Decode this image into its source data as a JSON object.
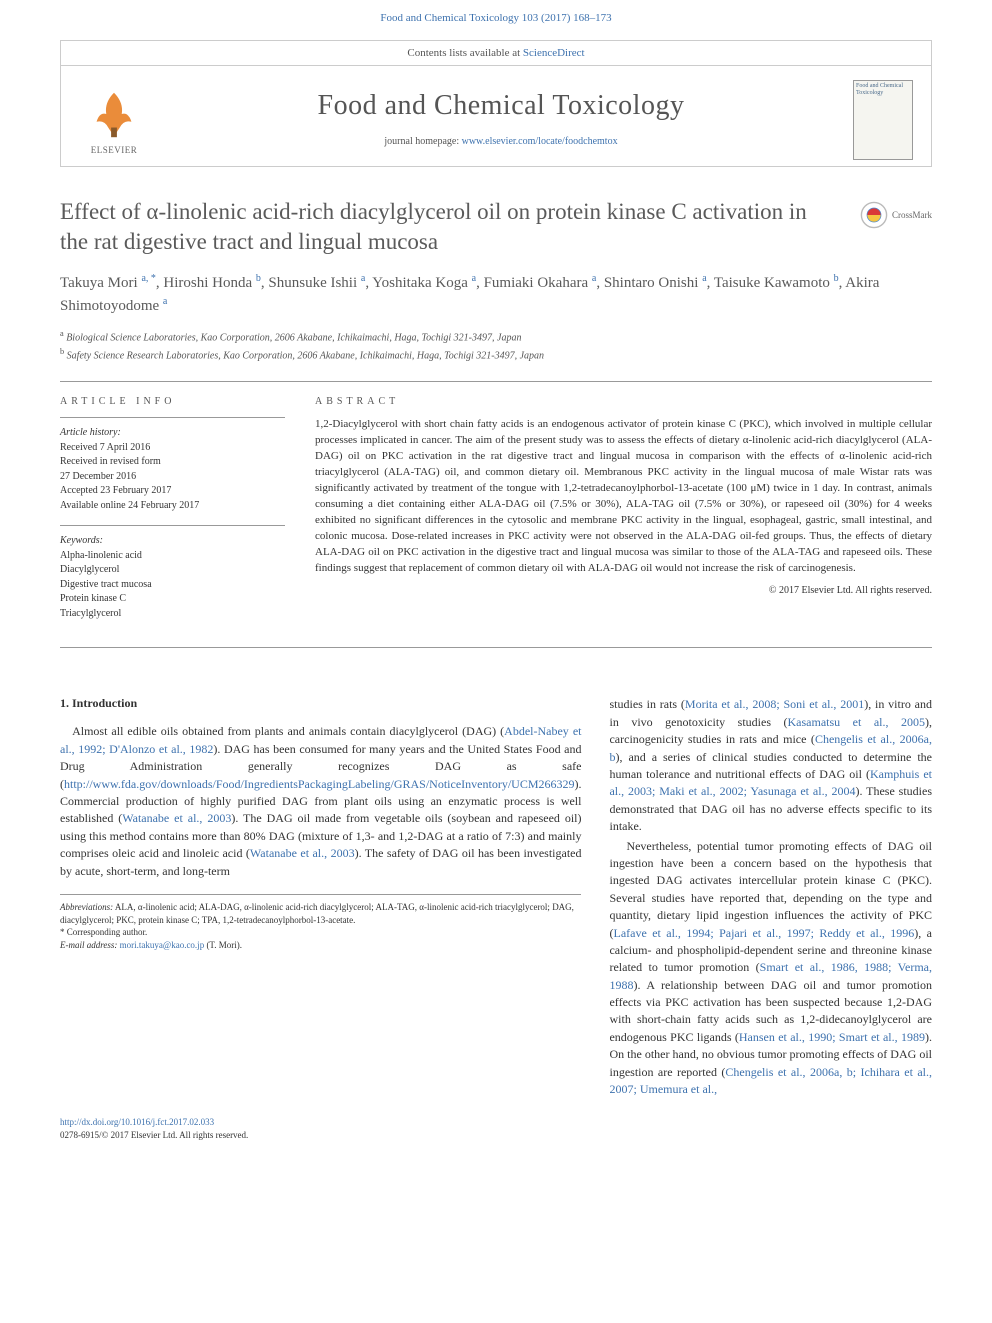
{
  "header": {
    "citation": "Food and Chemical Toxicology 103 (2017) 168–173",
    "contents_line_prefix": "Contents lists available at ",
    "contents_line_link": "ScienceDirect",
    "journal_title": "Food and Chemical Toxicology",
    "homepage_prefix": "journal homepage: ",
    "homepage_url": "www.elsevier.com/locate/foodchemtox",
    "cover_text": "Food and Chemical Toxicology"
  },
  "crossmark_label": "CrossMark",
  "article": {
    "title": "Effect of α-linolenic acid-rich diacylglycerol oil on protein kinase C activation in the rat digestive tract and lingual mucosa",
    "authors_html": "Takuya Mori <sup>a, *</sup>, Hiroshi Honda <sup>b</sup>, Shunsuke Ishii <sup>a</sup>, Yoshitaka Koga <sup>a</sup>, Fumiaki Okahara <sup>a</sup>, Shintaro Onishi <sup>a</sup>, Taisuke Kawamoto <sup>b</sup>, Akira Shimotoyodome <sup>a</sup>",
    "affiliations": [
      {
        "sup": "a",
        "text": "Biological Science Laboratories, Kao Corporation, 2606 Akabane, Ichikaimachi, Haga, Tochigi 321-3497, Japan"
      },
      {
        "sup": "b",
        "text": "Safety Science Research Laboratories, Kao Corporation, 2606 Akabane, Ichikaimachi, Haga, Tochigi 321-3497, Japan"
      }
    ]
  },
  "info": {
    "heading": "ARTICLE INFO",
    "history_label": "Article history:",
    "history": [
      "Received 7 April 2016",
      "Received in revised form",
      "27 December 2016",
      "Accepted 23 February 2017",
      "Available online 24 February 2017"
    ],
    "keywords_label": "Keywords:",
    "keywords": [
      "Alpha-linolenic acid",
      "Diacylglycerol",
      "Digestive tract mucosa",
      "Protein kinase C",
      "Triacylglycerol"
    ]
  },
  "abstract": {
    "heading": "ABSTRACT",
    "text": "1,2-Diacylglycerol with short chain fatty acids is an endogenous activator of protein kinase C (PKC), which involved in multiple cellular processes implicated in cancer. The aim of the present study was to assess the effects of dietary α-linolenic acid-rich diacylglycerol (ALA-DAG) oil on PKC activation in the rat digestive tract and lingual mucosa in comparison with the effects of α-linolenic acid-rich triacylglycerol (ALA-TAG) oil, and common dietary oil. Membranous PKC activity in the lingual mucosa of male Wistar rats was significantly activated by treatment of the tongue with 1,2-tetradecanoylphorbol-13-acetate (100 μM) twice in 1 day. In contrast, animals consuming a diet containing either ALA-DAG oil (7.5% or 30%), ALA-TAG oil (7.5% or 30%), or rapeseed oil (30%) for 4 weeks exhibited no significant differences in the cytosolic and membrane PKC activity in the lingual, esophageal, gastric, small intestinal, and colonic mucosa. Dose-related increases in PKC activity were not observed in the ALA-DAG oil-fed groups. Thus, the effects of dietary ALA-DAG oil on PKC activation in the digestive tract and lingual mucosa was similar to those of the ALA-TAG and rapeseed oils. These findings suggest that replacement of common dietary oil with ALA-DAG oil would not increase the risk of carcinogenesis.",
    "copyright": "© 2017 Elsevier Ltd. All rights reserved."
  },
  "body": {
    "section_heading": "1. Introduction",
    "col1_p1_pre": "Almost all edible oils obtained from plants and animals contain diacylglycerol (DAG) (",
    "col1_p1_cite1": "Abdel-Nabey et al., 1992; D'Alonzo et al., 1982",
    "col1_p1_mid1": "). DAG has been consumed for many years and the United States Food and Drug Administration generally recognizes DAG as safe (",
    "col1_p1_url": "http://www.fda.gov/downloads/Food/IngredientsPackagingLabeling/GRAS/NoticeInventory/UCM266329",
    "col1_p1_mid2": "). Commercial production of highly purified DAG from plant oils using an enzymatic process is well established (",
    "col1_p1_cite2": "Watanabe et al., 2003",
    "col1_p1_mid3": "). The DAG oil made from vegetable oils (soybean and rapeseed oil) using this method contains more than 80% DAG (mixture of 1,3- and 1,2-DAG at a ratio of 7:3) and mainly comprises oleic acid and linoleic acid (",
    "col1_p1_cite3": "Watanabe et al., 2003",
    "col1_p1_post": "). The safety of DAG oil has been investigated by acute, short-term, and long-term",
    "col2_p1_pre": "studies in rats (",
    "col2_p1_cite1": "Morita et al., 2008; Soni et al., 2001",
    "col2_p1_mid1": "), in vitro and in vivo genotoxicity studies (",
    "col2_p1_cite2": "Kasamatsu et al., 2005",
    "col2_p1_mid2": "), carcinogenicity studies in rats and mice (",
    "col2_p1_cite3": "Chengelis et al., 2006a, b",
    "col2_p1_mid3": "), and a series of clinical studies conducted to determine the human tolerance and nutritional effects of DAG oil (",
    "col2_p1_cite4": "Kamphuis et al., 2003; Maki et al., 2002; Yasunaga et al., 2004",
    "col2_p1_post": "). These studies demonstrated that DAG oil has no adverse effects specific to its intake.",
    "col2_p2_pre": "Nevertheless, potential tumor promoting effects of DAG oil ingestion have been a concern based on the hypothesis that ingested DAG activates intercellular protein kinase C (PKC). Several studies have reported that, depending on the type and quantity, dietary lipid ingestion influences the activity of PKC (",
    "col2_p2_cite1": "Lafave et al., 1994; Pajari et al., 1997; Reddy et al., 1996",
    "col2_p2_mid1": "), a calcium- and phospholipid-dependent serine and threonine kinase related to tumor promotion (",
    "col2_p2_cite2": "Smart et al., 1986, 1988; Verma, 1988",
    "col2_p2_mid2": "). A relationship between DAG oil and tumor promotion effects via PKC activation has been suspected because 1,2-DAG with short-chain fatty acids such as 1,2-didecanoylglycerol are endogenous PKC ligands (",
    "col2_p2_cite3": "Hansen et al., 1990; Smart et al., 1989",
    "col2_p2_mid3": "). On the other hand, no obvious tumor promoting effects of DAG oil ingestion are reported (",
    "col2_p2_cite4": "Chengelis et al., 2006a, b; Ichihara et al., 2007; Umemura et al.,"
  },
  "footnotes": {
    "abbrev_label": "Abbreviations:",
    "abbrev_text": " ALA, α-linolenic acid; ALA-DAG, α-linolenic acid-rich diacylglycerol; ALA-TAG, α-linolenic acid-rich triacylglycerol; DAG, diacylglycerol; PKC, protein kinase C; TPA, 1,2-tetradecanoylphorbol-13-acetate.",
    "corr_label": "* Corresponding author.",
    "email_label": "E-mail address: ",
    "email": "mori.takuya@kao.co.jp",
    "email_suffix": " (T. Mori)."
  },
  "footer": {
    "doi": "http://dx.doi.org/10.1016/j.fct.2017.02.033",
    "issn": "0278-6915/© 2017 Elsevier Ltd. All rights reserved."
  },
  "colors": {
    "link": "#3e72ae",
    "text": "#333333",
    "heading": "#5a5a5a",
    "border": "#cccccc",
    "divider": "#999999"
  }
}
